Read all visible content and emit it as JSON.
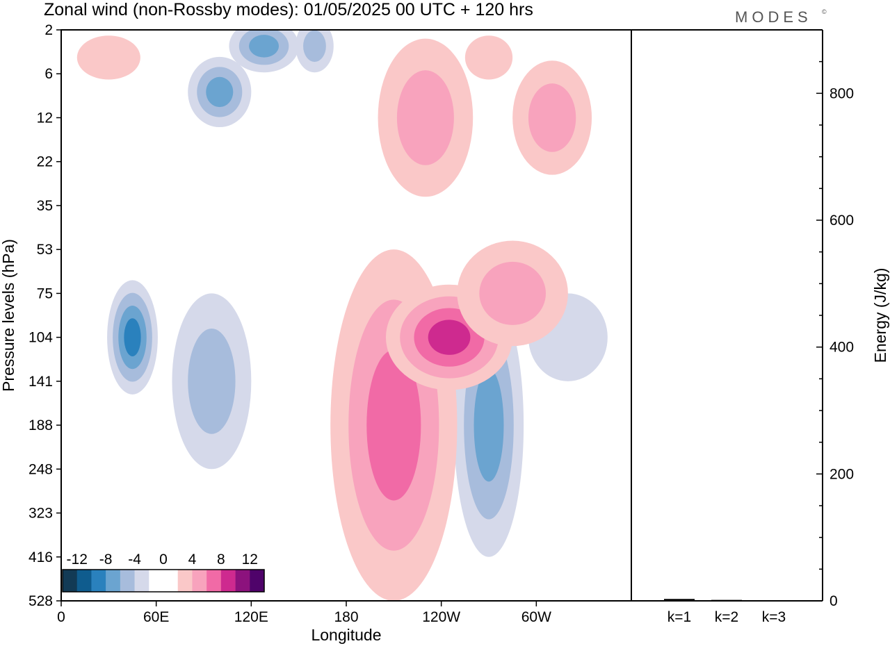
{
  "header": {
    "title": "Zonal wind (non-Rossby modes):  01/05/2025  00 UTC  + 120 hrs",
    "brand": "MODES",
    "brand_mark": "©"
  },
  "chart_data": [
    {
      "type": "heatmap",
      "title": "Zonal wind (non-Rossby modes):  01/05/2025  00 UTC  + 120 hrs",
      "xlabel": "Longitude",
      "ylabel": "Pressure levels (hPa)",
      "x_ticks": [
        "0",
        "60E",
        "120E",
        "180",
        "120W",
        "60W"
      ],
      "x_tick_degrees": [
        0,
        60,
        120,
        180,
        240,
        300
      ],
      "xlim": [
        0,
        360
      ],
      "y_ticks": [
        "2",
        "6",
        "12",
        "22",
        "35",
        "53",
        "75",
        "104",
        "141",
        "188",
        "248",
        "323",
        "416",
        "528"
      ],
      "colorbar": {
        "tick_labels": [
          "-12",
          "-8",
          "-4",
          "0",
          "4",
          "8",
          "12"
        ],
        "colors": [
          "#123a55",
          "#0f5c8e",
          "#2a81bd",
          "#6ba4d0",
          "#a7bcdc",
          "#d5d9ea",
          "#ffffff",
          "#ffffff",
          "#fac8c8",
          "#f8a3bd",
          "#f16aa6",
          "#ce2a8f",
          "#8c127d",
          "#4f036a"
        ]
      },
      "features": [
        {
          "cx": 45,
          "level": 104,
          "rx": 16,
          "ry": 1.3,
          "value": -8
        },
        {
          "cx": 100,
          "level": 8,
          "rx": 20,
          "ry": 0.8,
          "value": -6
        },
        {
          "cx": 128,
          "level": 3,
          "rx": 22,
          "ry": 0.6,
          "value": -6
        },
        {
          "cx": 160,
          "level": 3,
          "rx": 12,
          "ry": 0.6,
          "value": -4
        },
        {
          "cx": 95,
          "level": 141,
          "rx": 25,
          "ry": 2,
          "value": -4
        },
        {
          "cx": 270,
          "level": 188,
          "rx": 22,
          "ry": 3,
          "value": -6
        },
        {
          "cx": 320,
          "level": 104,
          "rx": 25,
          "ry": 1,
          "value": -3
        },
        {
          "cx": 210,
          "level": 188,
          "rx": 40,
          "ry": 4,
          "value": 6
        },
        {
          "cx": 245,
          "level": 104,
          "rx": 40,
          "ry": 1.2,
          "value": 9
        },
        {
          "cx": 285,
          "level": 75,
          "rx": 35,
          "ry": 1.2,
          "value": 5
        },
        {
          "cx": 230,
          "level": 12,
          "rx": 30,
          "ry": 1.8,
          "value": 4
        },
        {
          "cx": 310,
          "level": 12,
          "rx": 25,
          "ry": 1.3,
          "value": 4
        },
        {
          "cx": 30,
          "level": 4,
          "rx": 20,
          "ry": 0.5,
          "value": 3
        },
        {
          "cx": 270,
          "level": 4,
          "rx": 15,
          "ry": 0.5,
          "value": 3
        }
      ]
    },
    {
      "type": "bar",
      "categories": [
        "k=1",
        "k=2",
        "k=3"
      ],
      "values": [
        3,
        1.5,
        1
      ],
      "ylabel": "Energy (J/kg)",
      "ylim": [
        0,
        900
      ],
      "y_ticks": [
        0,
        200,
        400,
        600,
        800
      ]
    }
  ]
}
